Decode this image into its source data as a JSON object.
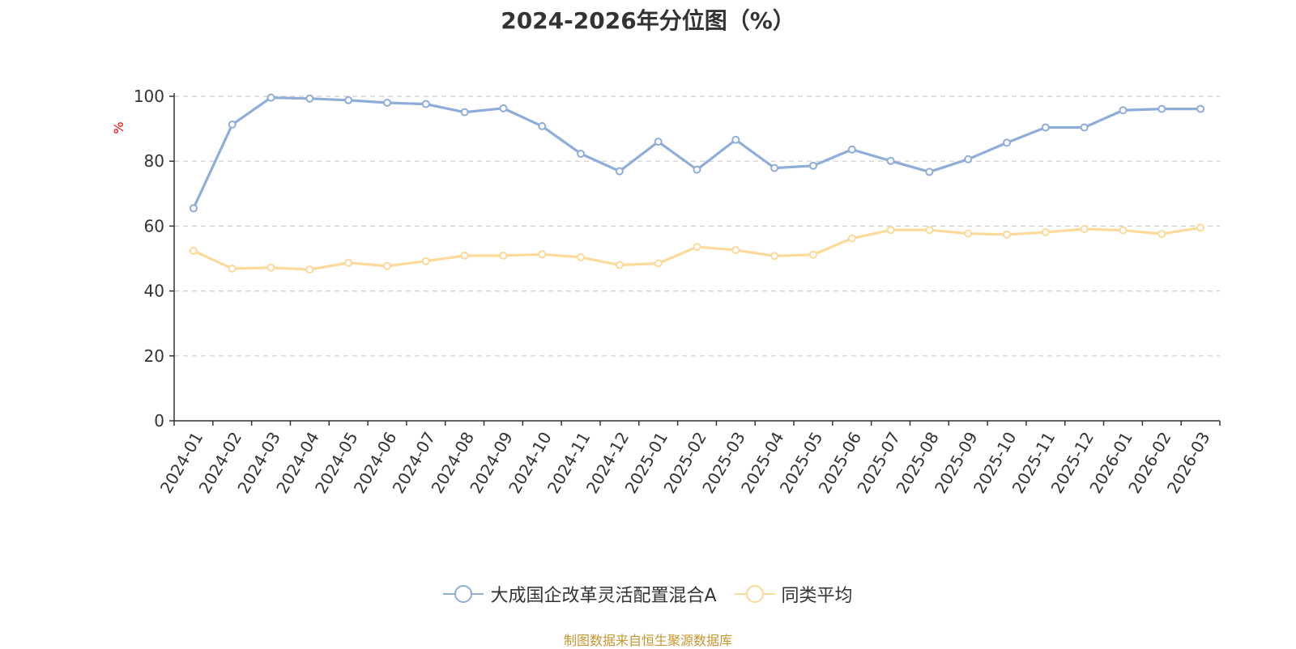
{
  "chart_data": {
    "type": "line",
    "title": "2024-2026年分位图（%）",
    "ylabel": "%",
    "xlabel": "",
    "ylim": [
      0,
      100
    ],
    "yticks": [
      0,
      20,
      40,
      60,
      80,
      100
    ],
    "grid": true,
    "legend_position": "bottom",
    "categories": [
      "2024-01",
      "2024-02",
      "2024-03",
      "2024-04",
      "2024-05",
      "2024-06",
      "2024-07",
      "2024-08",
      "2024-09",
      "2024-10",
      "2024-11",
      "2024-12",
      "2025-01",
      "2025-02",
      "2025-03",
      "2025-04",
      "2025-05",
      "2025-06",
      "2025-07",
      "2025-08",
      "2025-09",
      "2025-10",
      "2025-11",
      "2025-12",
      "2026-01",
      "2026-02",
      "2026-03"
    ],
    "series": [
      {
        "name": "大成国企改革灵活配置混合A",
        "color": "#8eadd9",
        "values": [
          65.5,
          91.3,
          99.6,
          99.3,
          98.8,
          98.0,
          97.6,
          95.1,
          96.3,
          90.8,
          82.3,
          76.9,
          86.0,
          77.4,
          86.6,
          77.9,
          78.6,
          83.6,
          80.1,
          76.7,
          80.6,
          85.7,
          90.4,
          90.4,
          95.7,
          96.1,
          96.1
        ]
      },
      {
        "name": "同类平均",
        "color": "#fdd99a",
        "values": [
          52.4,
          46.9,
          47.2,
          46.6,
          48.7,
          47.7,
          49.2,
          50.9,
          50.9,
          51.3,
          50.4,
          48.0,
          48.5,
          53.6,
          52.6,
          50.8,
          51.2,
          56.2,
          58.8,
          58.8,
          57.7,
          57.4,
          58.1,
          59.1,
          58.7,
          57.6,
          59.5
        ]
      }
    ]
  },
  "footer": {
    "source": "制图数据来自恒生聚源数据库",
    "source_color": "#c8962e"
  }
}
